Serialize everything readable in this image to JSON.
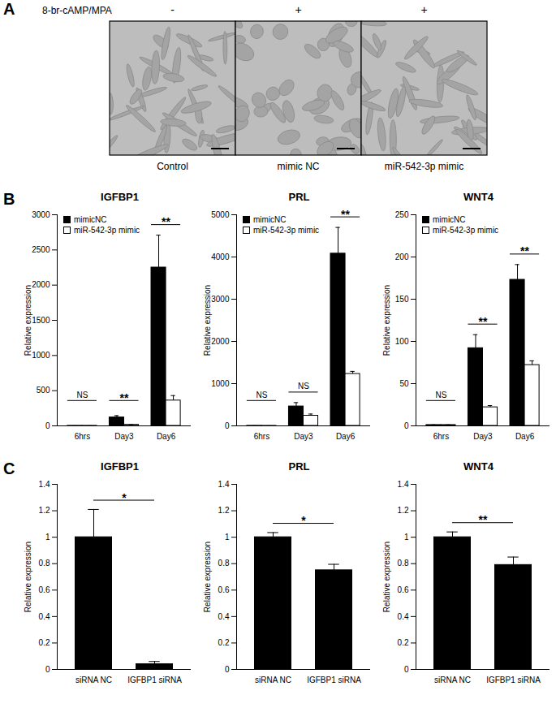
{
  "panel_labels": [
    "A",
    "B",
    "C"
  ],
  "panel_a": {
    "treatment_label": "8-br-cAMP/MPA",
    "images": [
      {
        "treatment": "-",
        "label": "Control"
      },
      {
        "treatment": "+",
        "label": "mimic NC"
      },
      {
        "treatment": "+",
        "label": "miR-542-3p mimic"
      }
    ]
  },
  "chart_data": [
    {
      "type": "bar",
      "title": "IGFBP1",
      "y_label": "Relative expression",
      "categories": [
        "6hrs",
        "Day3",
        "Day6"
      ],
      "series": [
        {
          "name": "mimicNC",
          "color": "#000000",
          "values": [
            1,
            120,
            2250
          ],
          "errors": [
            0.2,
            25,
            460
          ]
        },
        {
          "name": "miR-542-3p mimic",
          "color": "#ffffff",
          "values": [
            1,
            15,
            360
          ],
          "errors": [
            0.2,
            3,
            70
          ]
        }
      ],
      "ylim": [
        0,
        3000
      ],
      "yticks": [
        0,
        500,
        1000,
        1500,
        2000,
        2500,
        3000
      ],
      "legend": "upper left",
      "annotations": [
        {
          "categories": [
            "6hrs"
          ],
          "text": "NS"
        },
        {
          "categories": [
            "Day3"
          ],
          "text": "**"
        },
        {
          "categories": [
            "Day6"
          ],
          "text": "**"
        }
      ]
    },
    {
      "type": "bar",
      "title": "PRL",
      "y_label": "Relative expression",
      "categories": [
        "6hrs",
        "Day3",
        "Day6"
      ],
      "series": [
        {
          "name": "mimicNC",
          "color": "#000000",
          "values": [
            2,
            460,
            4080
          ],
          "errors": [
            0.5,
            90,
            620
          ]
        },
        {
          "name": "miR-542-3p mimic",
          "color": "#ffffff",
          "values": [
            1,
            240,
            1230
          ],
          "errors": [
            0.3,
            40,
            60
          ]
        }
      ],
      "ylim": [
        0,
        5000
      ],
      "yticks": [
        0,
        1000,
        2000,
        3000,
        4000,
        5000
      ],
      "legend": "upper left",
      "annotations": [
        {
          "categories": [
            "6hrs"
          ],
          "text": "NS"
        },
        {
          "categories": [
            "Day3"
          ],
          "text": "NS"
        },
        {
          "categories": [
            "Day6"
          ],
          "text": "**"
        }
      ]
    },
    {
      "type": "bar",
      "title": "WNT4",
      "y_label": "Relative expression",
      "categories": [
        "6hrs",
        "Day3",
        "Day6"
      ],
      "series": [
        {
          "name": "mimicNC",
          "color": "#000000",
          "values": [
            1,
            92,
            173
          ],
          "errors": [
            0.2,
            16,
            18
          ]
        },
        {
          "name": "miR-542-3p mimic",
          "color": "#ffffff",
          "values": [
            1,
            22,
            72
          ],
          "errors": [
            0.2,
            2,
            5
          ]
        }
      ],
      "ylim": [
        0,
        250
      ],
      "yticks": [
        0,
        50,
        100,
        150,
        200,
        250
      ],
      "legend": "upper left",
      "annotations": [
        {
          "categories": [
            "6hrs"
          ],
          "text": "NS"
        },
        {
          "categories": [
            "Day3"
          ],
          "text": "**"
        },
        {
          "categories": [
            "Day6"
          ],
          "text": "**"
        }
      ]
    },
    {
      "type": "bar",
      "title": "IGFBP1",
      "y_label": "Relative expression",
      "categories": [
        "siRNA NC",
        "IGFBP1 siRNA"
      ],
      "color": "#000000",
      "values": [
        1,
        0.04
      ],
      "errors": [
        0.21,
        0.02
      ],
      "ylim": [
        0,
        1.4
      ],
      "yticks": [
        0,
        0.2,
        0.4,
        0.6,
        0.8,
        1,
        1.2,
        1.4
      ],
      "annotations": [
        {
          "categories": [
            "siRNA NC",
            "IGFBP1 siRNA"
          ],
          "text": "*"
        }
      ]
    },
    {
      "type": "bar",
      "title": "PRL",
      "y_label": "Relative expression",
      "categories": [
        "siRNA NC",
        "IGFBP1 siRNA"
      ],
      "color": "#000000",
      "values": [
        1,
        0.75
      ],
      "errors": [
        0.035,
        0.045
      ],
      "ylim": [
        0,
        1.4
      ],
      "yticks": [
        0,
        0.2,
        0.4,
        0.6,
        0.8,
        1,
        1.2,
        1.4
      ],
      "annotations": [
        {
          "categories": [
            "siRNA NC",
            "IGFBP1 siRNA"
          ],
          "text": "*"
        }
      ]
    },
    {
      "type": "bar",
      "title": "WNT4",
      "y_label": "Relative expression",
      "categories": [
        "siRNA NC",
        "IGFBP1 siRNA"
      ],
      "color": "#000000",
      "values": [
        1,
        0.79
      ],
      "errors": [
        0.04,
        0.06
      ],
      "ylim": [
        0,
        1.4
      ],
      "yticks": [
        0,
        0.2,
        0.4,
        0.6,
        0.8,
        1,
        1.2,
        1.4
      ],
      "annotations": [
        {
          "categories": [
            "siRNA NC",
            "IGFBP1 siRNA"
          ],
          "text": "**"
        }
      ]
    }
  ]
}
